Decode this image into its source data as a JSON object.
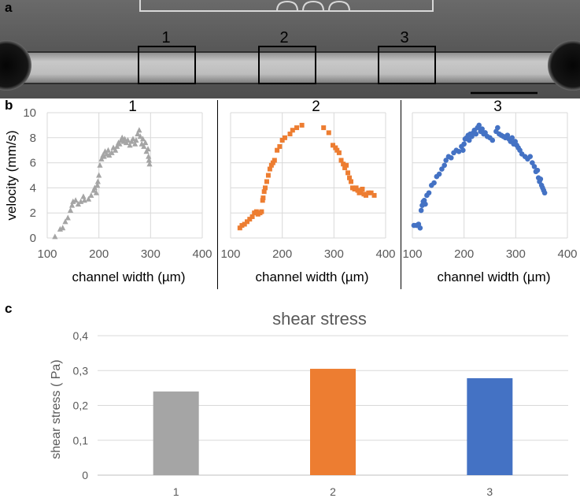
{
  "panels": {
    "a": "a",
    "b": "b",
    "c": "c"
  },
  "micrograph": {
    "regions": [
      "1",
      "2",
      "3"
    ],
    "colors": {
      "bg": "#5b5b5b",
      "channel": "#b9b9b9",
      "wall": "#2a2a2a"
    }
  },
  "chart_data": [
    {
      "type": "scatter",
      "title": "1",
      "xlabel": "channel width (µm)",
      "ylabel": "velocity (mm/s)",
      "xlim": [
        100,
        400
      ],
      "ylim": [
        0,
        10
      ],
      "xticks": [
        100,
        200,
        300,
        400
      ],
      "yticks": [
        0,
        2,
        4,
        6,
        8,
        10
      ],
      "marker": "triangle",
      "color": "#a5a5a5",
      "points": [
        [
          115,
          0.1
        ],
        [
          125,
          0.7
        ],
        [
          130,
          0.8
        ],
        [
          135,
          1.3
        ],
        [
          140,
          1.6
        ],
        [
          145,
          2.2
        ],
        [
          148,
          2.6
        ],
        [
          150,
          2.9
        ],
        [
          155,
          3.0
        ],
        [
          160,
          2.7
        ],
        [
          165,
          2.9
        ],
        [
          170,
          3.3
        ],
        [
          172,
          3.0
        ],
        [
          180,
          3.1
        ],
        [
          185,
          3.4
        ],
        [
          190,
          3.8
        ],
        [
          192,
          4.0
        ],
        [
          195,
          3.6
        ],
        [
          197,
          4.2
        ],
        [
          198,
          4.5
        ],
        [
          200,
          5.0
        ],
        [
          202,
          5.8
        ],
        [
          205,
          6.3
        ],
        [
          208,
          6.6
        ],
        [
          210,
          6.5
        ],
        [
          212,
          6.9
        ],
        [
          215,
          6.7
        ],
        [
          218,
          7.0
        ],
        [
          220,
          6.6
        ],
        [
          225,
          6.8
        ],
        [
          228,
          7.2
        ],
        [
          232,
          7.0
        ],
        [
          235,
          7.3
        ],
        [
          238,
          7.6
        ],
        [
          240,
          7.5
        ],
        [
          243,
          7.8
        ],
        [
          245,
          8.0
        ],
        [
          248,
          7.7
        ],
        [
          250,
          7.9
        ],
        [
          253,
          7.6
        ],
        [
          256,
          7.8
        ],
        [
          260,
          7.4
        ],
        [
          263,
          7.7
        ],
        [
          266,
          7.9
        ],
        [
          270,
          7.5
        ],
        [
          272,
          7.8
        ],
        [
          275,
          8.3
        ],
        [
          278,
          8.6
        ],
        [
          280,
          8.1
        ],
        [
          283,
          7.5
        ],
        [
          285,
          7.9
        ],
        [
          287,
          7.3
        ],
        [
          290,
          7.6
        ],
        [
          292,
          6.9
        ],
        [
          295,
          7.1
        ],
        [
          296,
          6.5
        ],
        [
          297,
          6.2
        ],
        [
          298,
          5.9
        ]
      ]
    },
    {
      "type": "scatter",
      "title": "2",
      "xlabel": "channel width (µm)",
      "ylabel": "",
      "xlim": [
        100,
        400
      ],
      "ylim": [
        0,
        10
      ],
      "xticks": [
        100,
        200,
        300,
        400
      ],
      "yticks": [
        0,
        2,
        4,
        6,
        8,
        10
      ],
      "marker": "square",
      "color": "#ed7d31",
      "points": [
        [
          118,
          0.8
        ],
        [
          122,
          1.0
        ],
        [
          127,
          1.1
        ],
        [
          132,
          1.3
        ],
        [
          137,
          1.5
        ],
        [
          142,
          1.7
        ],
        [
          146,
          2.0
        ],
        [
          150,
          2.1
        ],
        [
          153,
          1.9
        ],
        [
          157,
          2.0
        ],
        [
          160,
          2.1
        ],
        [
          162,
          3.0
        ],
        [
          163,
          3.2
        ],
        [
          165,
          3.7
        ],
        [
          167,
          4.0
        ],
        [
          170,
          4.5
        ],
        [
          173,
          5.0
        ],
        [
          176,
          5.5
        ],
        [
          179,
          5.8
        ],
        [
          182,
          6.0
        ],
        [
          185,
          6.2
        ],
        [
          190,
          7.0
        ],
        [
          195,
          7.3
        ],
        [
          200,
          7.8
        ],
        [
          205,
          8.0
        ],
        [
          215,
          8.3
        ],
        [
          220,
          8.6
        ],
        [
          228,
          8.8
        ],
        [
          238,
          9.0
        ],
        [
          280,
          8.8
        ],
        [
          290,
          8.4
        ],
        [
          298,
          7.4
        ],
        [
          303,
          7.2
        ],
        [
          306,
          7.0
        ],
        [
          310,
          6.8
        ],
        [
          314,
          6.2
        ],
        [
          318,
          5.9
        ],
        [
          321,
          5.6
        ],
        [
          324,
          5.8
        ],
        [
          327,
          5.2
        ],
        [
          330,
          4.8
        ],
        [
          333,
          4.5
        ],
        [
          336,
          4.0
        ],
        [
          340,
          3.9
        ],
        [
          343,
          4.0
        ],
        [
          346,
          3.8
        ],
        [
          349,
          3.6
        ],
        [
          352,
          3.7
        ],
        [
          355,
          3.9
        ],
        [
          358,
          3.5
        ],
        [
          362,
          3.4
        ],
        [
          367,
          3.6
        ],
        [
          372,
          3.6
        ],
        [
          378,
          3.4
        ]
      ]
    },
    {
      "type": "scatter",
      "title": "3",
      "xlabel": "channel width (µm)",
      "ylabel": "",
      "xlim": [
        100,
        400
      ],
      "ylim": [
        0,
        10
      ],
      "xticks": [
        100,
        200,
        300,
        400
      ],
      "yticks": [
        0,
        2,
        4,
        6,
        8,
        10
      ],
      "marker": "circle",
      "color": "#4472c4",
      "points": [
        [
          103,
          1.0
        ],
        [
          108,
          1.0
        ],
        [
          112,
          1.1
        ],
        [
          115,
          0.8
        ],
        [
          117,
          2.2
        ],
        [
          119,
          2.6
        ],
        [
          121,
          2.9
        ],
        [
          123,
          3.0
        ],
        [
          125,
          2.7
        ],
        [
          128,
          3.4
        ],
        [
          132,
          3.6
        ],
        [
          137,
          4.2
        ],
        [
          142,
          4.4
        ],
        [
          147,
          4.9
        ],
        [
          152,
          5.1
        ],
        [
          157,
          5.5
        ],
        [
          162,
          5.8
        ],
        [
          165,
          6.2
        ],
        [
          170,
          6.5
        ],
        [
          175,
          6.4
        ],
        [
          180,
          6.8
        ],
        [
          185,
          7.0
        ],
        [
          190,
          6.9
        ],
        [
          195,
          7.3
        ],
        [
          198,
          7.0
        ],
        [
          200,
          7.5
        ],
        [
          202,
          7.9
        ],
        [
          205,
          8.0
        ],
        [
          208,
          8.2
        ],
        [
          210,
          7.8
        ],
        [
          212,
          8.3
        ],
        [
          215,
          8.1
        ],
        [
          218,
          8.4
        ],
        [
          220,
          8.6
        ],
        [
          223,
          8.3
        ],
        [
          226,
          8.8
        ],
        [
          229,
          9.0
        ],
        [
          232,
          8.5
        ],
        [
          235,
          8.7
        ],
        [
          238,
          8.3
        ],
        [
          241,
          8.4
        ],
        [
          245,
          8.1
        ],
        [
          250,
          8.0
        ],
        [
          255,
          7.8
        ],
        [
          262,
          8.5
        ],
        [
          265,
          8.8
        ],
        [
          268,
          8.3
        ],
        [
          272,
          8.2
        ],
        [
          276,
          8.1
        ],
        [
          280,
          8.0
        ],
        [
          284,
          8.2
        ],
        [
          287,
          7.9
        ],
        [
          290,
          7.7
        ],
        [
          293,
          8.0
        ],
        [
          296,
          7.5
        ],
        [
          299,
          7.7
        ],
        [
          302,
          7.4
        ],
        [
          305,
          7.2
        ],
        [
          308,
          7.0
        ],
        [
          312,
          6.7
        ],
        [
          318,
          6.5
        ],
        [
          323,
          6.3
        ],
        [
          328,
          6.5
        ],
        [
          332,
          6.0
        ],
        [
          336,
          5.7
        ],
        [
          339,
          5.3
        ],
        [
          342,
          5.4
        ],
        [
          344,
          4.8
        ],
        [
          346,
          4.5
        ],
        [
          348,
          4.7
        ],
        [
          350,
          4.2
        ],
        [
          352,
          4.0
        ],
        [
          354,
          3.8
        ],
        [
          356,
          3.6
        ]
      ]
    },
    {
      "type": "bar",
      "title": "shear stress",
      "xlabel": "",
      "ylabel": "shear stress ( Pa)",
      "categories": [
        "1",
        "2",
        "3"
      ],
      "values": [
        0.24,
        0.305,
        0.278
      ],
      "colors": [
        "#a5a5a5",
        "#ed7d31",
        "#4472c4"
      ],
      "ylim": [
        0,
        0.4
      ],
      "yticks": [
        "0",
        "0,1",
        "0,2",
        "0,3",
        "0,4"
      ]
    }
  ]
}
